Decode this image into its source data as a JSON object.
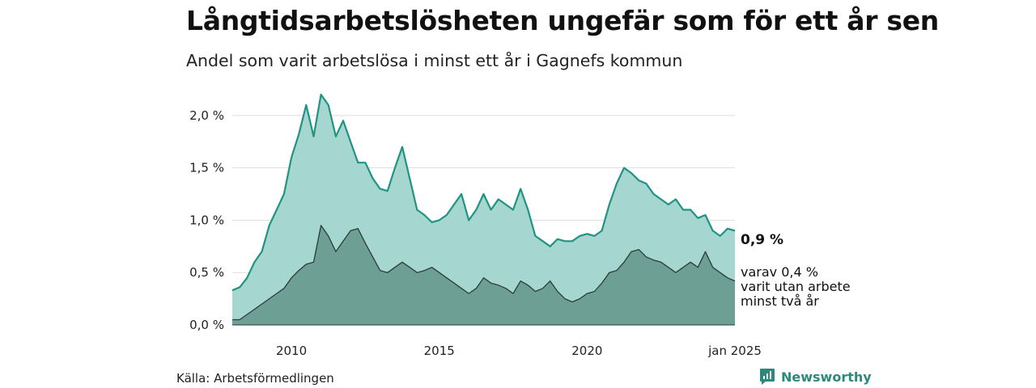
{
  "header": {
    "title": "Långtidsarbetslösheten ungefär som för ett år sen",
    "subtitle": "Andel som varit arbetslösa i minst ett år i Gagnefs kommun"
  },
  "footer": {
    "source": "Källa: Arbetsförmedlingen",
    "brand": "Newsworthy"
  },
  "colors": {
    "series1_line": "#1f9483",
    "series1_fill": "#a6d6d0",
    "series2_line": "#2b3d38",
    "series2_fill": "#6d9f95",
    "grid": "#dddddd",
    "brand": "#2c8a7c"
  },
  "chart_data": {
    "type": "area",
    "ylim": [
      0,
      2.3
    ],
    "y_ticks": [
      {
        "value": 0,
        "label": "0,0 %"
      },
      {
        "value": 0.5,
        "label": "0,5 %"
      },
      {
        "value": 1.0,
        "label": "1,0 %"
      },
      {
        "value": 1.5,
        "label": "1,5 %"
      },
      {
        "value": 2.0,
        "label": "2,0 %"
      }
    ],
    "x_ticks": [
      {
        "x": "2010-01",
        "label": "2010"
      },
      {
        "x": "2015-01",
        "label": "2015"
      },
      {
        "x": "2020-01",
        "label": "2020"
      },
      {
        "x": "2025-01",
        "label": "jan 2025"
      }
    ],
    "grid": true,
    "start": "2008-01",
    "end": "2025-01",
    "series": [
      {
        "end_label": "0,9 %",
        "points": [
          [
            "2008-01",
            0.33
          ],
          [
            "2008-04",
            0.36
          ],
          [
            "2008-07",
            0.45
          ],
          [
            "2008-10",
            0.6
          ],
          [
            "2009-01",
            0.7
          ],
          [
            "2009-04",
            0.95
          ],
          [
            "2009-07",
            1.1
          ],
          [
            "2009-10",
            1.25
          ],
          [
            "2010-01",
            1.6
          ],
          [
            "2010-04",
            1.82
          ],
          [
            "2010-07",
            2.1
          ],
          [
            "2010-10",
            1.8
          ],
          [
            "2011-01",
            2.2
          ],
          [
            "2011-04",
            2.1
          ],
          [
            "2011-07",
            1.8
          ],
          [
            "2011-10",
            1.95
          ],
          [
            "2012-01",
            1.75
          ],
          [
            "2012-04",
            1.55
          ],
          [
            "2012-07",
            1.55
          ],
          [
            "2012-10",
            1.4
          ],
          [
            "2013-01",
            1.3
          ],
          [
            "2013-04",
            1.28
          ],
          [
            "2013-07",
            1.5
          ],
          [
            "2013-10",
            1.7
          ],
          [
            "2014-01",
            1.4
          ],
          [
            "2014-04",
            1.1
          ],
          [
            "2014-07",
            1.05
          ],
          [
            "2014-10",
            0.98
          ],
          [
            "2015-01",
            1.0
          ],
          [
            "2015-04",
            1.05
          ],
          [
            "2015-07",
            1.15
          ],
          [
            "2015-10",
            1.25
          ],
          [
            "2016-01",
            1.0
          ],
          [
            "2016-04",
            1.1
          ],
          [
            "2016-07",
            1.25
          ],
          [
            "2016-10",
            1.1
          ],
          [
            "2017-01",
            1.2
          ],
          [
            "2017-04",
            1.15
          ],
          [
            "2017-07",
            1.1
          ],
          [
            "2017-10",
            1.3
          ],
          [
            "2018-01",
            1.1
          ],
          [
            "2018-04",
            0.85
          ],
          [
            "2018-07",
            0.8
          ],
          [
            "2018-10",
            0.75
          ],
          [
            "2019-01",
            0.82
          ],
          [
            "2019-04",
            0.8
          ],
          [
            "2019-07",
            0.8
          ],
          [
            "2019-10",
            0.85
          ],
          [
            "2020-01",
            0.87
          ],
          [
            "2020-04",
            0.85
          ],
          [
            "2020-07",
            0.9
          ],
          [
            "2020-10",
            1.15
          ],
          [
            "2021-01",
            1.35
          ],
          [
            "2021-04",
            1.5
          ],
          [
            "2021-07",
            1.45
          ],
          [
            "2021-10",
            1.38
          ],
          [
            "2022-01",
            1.35
          ],
          [
            "2022-04",
            1.25
          ],
          [
            "2022-07",
            1.2
          ],
          [
            "2022-10",
            1.15
          ],
          [
            "2023-01",
            1.2
          ],
          [
            "2023-04",
            1.1
          ],
          [
            "2023-07",
            1.1
          ],
          [
            "2023-10",
            1.02
          ],
          [
            "2024-01",
            1.05
          ],
          [
            "2024-04",
            0.9
          ],
          [
            "2024-07",
            0.85
          ],
          [
            "2024-10",
            0.92
          ],
          [
            "2025-01",
            0.9
          ]
        ]
      },
      {
        "end_label": "varav 0,4 %",
        "end_label_lines": [
          "varit utan arbete",
          "minst två år"
        ],
        "points": [
          [
            "2008-01",
            0.05
          ],
          [
            "2008-04",
            0.05
          ],
          [
            "2008-07",
            0.1
          ],
          [
            "2008-10",
            0.15
          ],
          [
            "2009-01",
            0.2
          ],
          [
            "2009-04",
            0.25
          ],
          [
            "2009-07",
            0.3
          ],
          [
            "2009-10",
            0.35
          ],
          [
            "2010-01",
            0.45
          ],
          [
            "2010-04",
            0.52
          ],
          [
            "2010-07",
            0.58
          ],
          [
            "2010-10",
            0.6
          ],
          [
            "2011-01",
            0.95
          ],
          [
            "2011-04",
            0.85
          ],
          [
            "2011-07",
            0.7
          ],
          [
            "2011-10",
            0.8
          ],
          [
            "2012-01",
            0.9
          ],
          [
            "2012-04",
            0.92
          ],
          [
            "2012-07",
            0.78
          ],
          [
            "2012-10",
            0.65
          ],
          [
            "2013-01",
            0.52
          ],
          [
            "2013-04",
            0.5
          ],
          [
            "2013-07",
            0.55
          ],
          [
            "2013-10",
            0.6
          ],
          [
            "2014-01",
            0.55
          ],
          [
            "2014-04",
            0.5
          ],
          [
            "2014-07",
            0.52
          ],
          [
            "2014-10",
            0.55
          ],
          [
            "2015-01",
            0.5
          ],
          [
            "2015-04",
            0.45
          ],
          [
            "2015-07",
            0.4
          ],
          [
            "2015-10",
            0.35
          ],
          [
            "2016-01",
            0.3
          ],
          [
            "2016-04",
            0.35
          ],
          [
            "2016-07",
            0.45
          ],
          [
            "2016-10",
            0.4
          ],
          [
            "2017-01",
            0.38
          ],
          [
            "2017-04",
            0.35
          ],
          [
            "2017-07",
            0.3
          ],
          [
            "2017-10",
            0.42
          ],
          [
            "2018-01",
            0.38
          ],
          [
            "2018-04",
            0.32
          ],
          [
            "2018-07",
            0.35
          ],
          [
            "2018-10",
            0.42
          ],
          [
            "2019-01",
            0.32
          ],
          [
            "2019-04",
            0.25
          ],
          [
            "2019-07",
            0.22
          ],
          [
            "2019-10",
            0.25
          ],
          [
            "2020-01",
            0.3
          ],
          [
            "2020-04",
            0.32
          ],
          [
            "2020-07",
            0.4
          ],
          [
            "2020-10",
            0.5
          ],
          [
            "2021-01",
            0.52
          ],
          [
            "2021-04",
            0.6
          ],
          [
            "2021-07",
            0.7
          ],
          [
            "2021-10",
            0.72
          ],
          [
            "2022-01",
            0.65
          ],
          [
            "2022-04",
            0.62
          ],
          [
            "2022-07",
            0.6
          ],
          [
            "2022-10",
            0.55
          ],
          [
            "2023-01",
            0.5
          ],
          [
            "2023-04",
            0.55
          ],
          [
            "2023-07",
            0.6
          ],
          [
            "2023-10",
            0.55
          ],
          [
            "2024-01",
            0.7
          ],
          [
            "2024-04",
            0.55
          ],
          [
            "2024-07",
            0.5
          ],
          [
            "2024-10",
            0.45
          ],
          [
            "2025-01",
            0.42
          ]
        ]
      }
    ]
  }
}
